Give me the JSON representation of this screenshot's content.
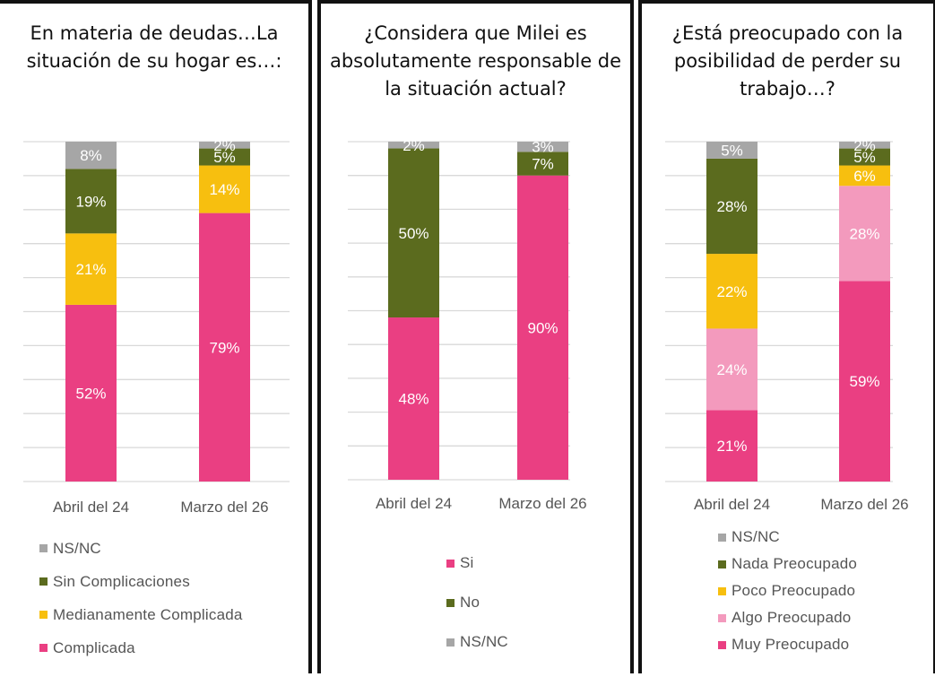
{
  "colors": {
    "ns_nc": "#a6a6a6",
    "olive": "#5b6b1e",
    "yellow": "#f7bf0f",
    "light_pink": "#f39abd",
    "pink": "#ea3f82",
    "grid": "#d9d9d9",
    "text": "#555555",
    "label": "#ffffff"
  },
  "chart_data": [
    {
      "type": "bar",
      "stacked": true,
      "title": "En materia de deudas…La situación de su hogar es…:",
      "categories": [
        "Abril del 24",
        "Marzo del 26"
      ],
      "ylim": [
        0,
        100
      ],
      "grid": true,
      "legend_order": [
        "NS/NC",
        "Sin Complicaciones",
        "Medianamente Complicada",
        "Complicada"
      ],
      "series": [
        {
          "name": "Complicada",
          "color_key": "pink",
          "values": [
            52,
            79
          ],
          "labels": [
            "52%",
            "79%"
          ]
        },
        {
          "name": "Medianamente Complicada",
          "color_key": "yellow",
          "values": [
            21,
            14
          ],
          "labels": [
            "21%",
            "14%"
          ]
        },
        {
          "name": "Sin Complicaciones",
          "color_key": "olive",
          "values": [
            19,
            5
          ],
          "labels": [
            "19%",
            "5%"
          ]
        },
        {
          "name": "NS/NC",
          "color_key": "ns_nc",
          "values": [
            8,
            2
          ],
          "labels": [
            "8%",
            "2%"
          ]
        }
      ]
    },
    {
      "type": "bar",
      "stacked": true,
      "title": "¿Considera que Milei es absolutamente responsable de la situación actual?",
      "categories": [
        "Abril del 24",
        "Marzo del 26"
      ],
      "ylim": [
        0,
        100
      ],
      "grid": true,
      "legend_order": [
        "Si",
        "No",
        "NS/NC"
      ],
      "series": [
        {
          "name": "Si",
          "color_key": "pink",
          "values": [
            48,
            90
          ],
          "labels": [
            "48%",
            "90%"
          ]
        },
        {
          "name": "No",
          "color_key": "olive",
          "values": [
            50,
            7
          ],
          "labels": [
            "50%",
            "7%"
          ]
        },
        {
          "name": "NS/NC",
          "color_key": "ns_nc",
          "values": [
            2,
            3
          ],
          "labels": [
            "2%",
            "3%"
          ]
        }
      ]
    },
    {
      "type": "bar",
      "stacked": true,
      "title": "¿Está preocupado con la posibilidad de perder su trabajo…?",
      "categories": [
        "Abril del 24",
        "Marzo del 26"
      ],
      "ylim": [
        0,
        100
      ],
      "grid": true,
      "legend_order": [
        "NS/NC",
        "Nada Preocupado",
        "Poco Preocupado",
        "Algo Preocupado",
        "Muy Preocupado"
      ],
      "series": [
        {
          "name": "Muy Preocupado",
          "color_key": "pink",
          "values": [
            21,
            59
          ],
          "labels": [
            "21%",
            "59%"
          ]
        },
        {
          "name": "Algo Preocupado",
          "color_key": "light_pink",
          "values": [
            24,
            28
          ],
          "labels": [
            "24%",
            "28%"
          ]
        },
        {
          "name": "Poco Preocupado",
          "color_key": "yellow",
          "values": [
            22,
            6
          ],
          "labels": [
            "22%",
            "6%"
          ]
        },
        {
          "name": "Nada Preocupado",
          "color_key": "olive",
          "values": [
            28,
            5
          ],
          "labels": [
            "28%",
            "5%"
          ]
        },
        {
          "name": "NS/NC",
          "color_key": "ns_nc",
          "values": [
            5,
            2
          ],
          "labels": [
            "5%",
            "2%"
          ]
        }
      ]
    }
  ]
}
